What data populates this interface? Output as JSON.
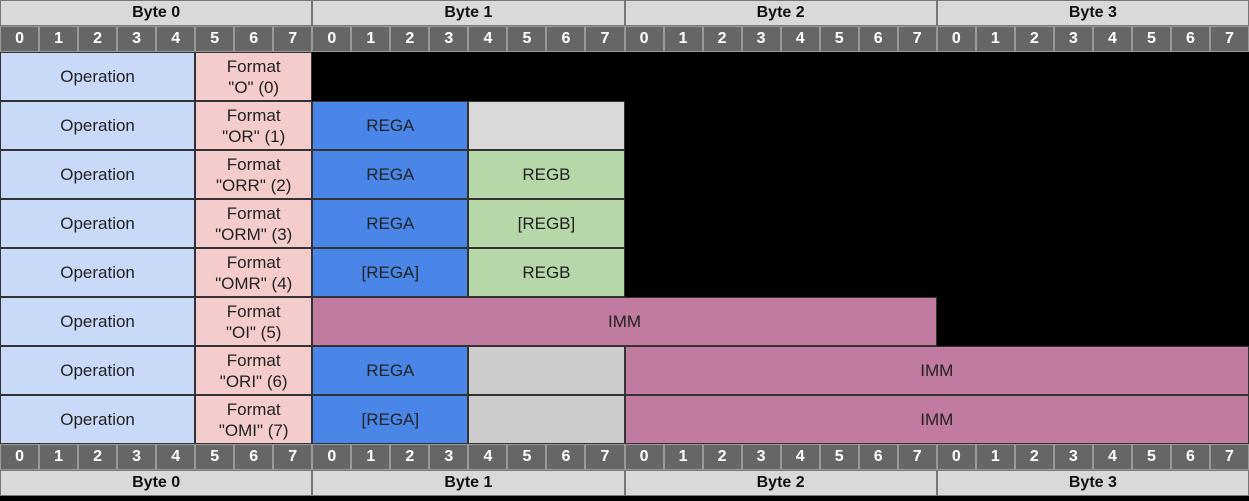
{
  "bytes": [
    "Byte 0",
    "Byte 1",
    "Byte 2",
    "Byte 3"
  ],
  "bits": [
    "0",
    "1",
    "2",
    "3",
    "4",
    "5",
    "6",
    "7"
  ],
  "colors": {
    "operation": "#c9daf8",
    "format": "#f4cccc",
    "rega": "#4a86e8",
    "regb": "#b6d7a8",
    "pad_light": "#d9d9d9",
    "pad_mid": "#cccccc",
    "imm": "#c27ba0",
    "bit_header": "#666666",
    "byte_header": "#d9d9d9"
  },
  "rows": [
    {
      "fields": [
        {
          "type": "operation",
          "label": "Operation",
          "bits": 5
        },
        {
          "type": "format",
          "label": "Format",
          "label2": "\"O\" (0)",
          "bits": 3
        },
        {
          "type": "empty",
          "label": "",
          "bits": 24
        }
      ]
    },
    {
      "fields": [
        {
          "type": "operation",
          "label": "Operation",
          "bits": 5
        },
        {
          "type": "format",
          "label": "Format",
          "label2": "\"OR\" (1)",
          "bits": 3
        },
        {
          "type": "rega",
          "label": "REGA",
          "bits": 4
        },
        {
          "type": "pad-light",
          "label": "",
          "bits": 4
        },
        {
          "type": "empty",
          "label": "",
          "bits": 16
        }
      ]
    },
    {
      "fields": [
        {
          "type": "operation",
          "label": "Operation",
          "bits": 5
        },
        {
          "type": "format",
          "label": "Format",
          "label2": "\"ORR\" (2)",
          "bits": 3
        },
        {
          "type": "rega",
          "label": "REGA",
          "bits": 4
        },
        {
          "type": "regb",
          "label": "REGB",
          "bits": 4
        },
        {
          "type": "empty",
          "label": "",
          "bits": 16
        }
      ]
    },
    {
      "fields": [
        {
          "type": "operation",
          "label": "Operation",
          "bits": 5
        },
        {
          "type": "format",
          "label": "Format",
          "label2": "\"ORM\" (3)",
          "bits": 3
        },
        {
          "type": "rega",
          "label": "REGA",
          "bits": 4
        },
        {
          "type": "regb",
          "label": "[REGB]",
          "bits": 4
        },
        {
          "type": "empty",
          "label": "",
          "bits": 16
        }
      ]
    },
    {
      "fields": [
        {
          "type": "operation",
          "label": "Operation",
          "bits": 5
        },
        {
          "type": "format",
          "label": "Format",
          "label2": "\"OMR\" (4)",
          "bits": 3
        },
        {
          "type": "rega",
          "label": "[REGA]",
          "bits": 4
        },
        {
          "type": "regb",
          "label": "REGB",
          "bits": 4
        },
        {
          "type": "empty",
          "label": "",
          "bits": 16
        }
      ]
    },
    {
      "fields": [
        {
          "type": "operation",
          "label": "Operation",
          "bits": 5
        },
        {
          "type": "format",
          "label": "Format",
          "label2": "\"OI\" (5)",
          "bits": 3
        },
        {
          "type": "imm",
          "label": "IMM",
          "bits": 16
        },
        {
          "type": "empty",
          "label": "",
          "bits": 8
        }
      ]
    },
    {
      "fields": [
        {
          "type": "operation",
          "label": "Operation",
          "bits": 5
        },
        {
          "type": "format",
          "label": "Format",
          "label2": "\"ORI\" (6)",
          "bits": 3
        },
        {
          "type": "rega",
          "label": "REGA",
          "bits": 4
        },
        {
          "type": "pad-mid",
          "label": "",
          "bits": 4
        },
        {
          "type": "imm",
          "label": "IMM",
          "bits": 16
        }
      ]
    },
    {
      "fields": [
        {
          "type": "operation",
          "label": "Operation",
          "bits": 5
        },
        {
          "type": "format",
          "label": "Format",
          "label2": "\"OMI\" (7)",
          "bits": 3
        },
        {
          "type": "rega",
          "label": "[REGA]",
          "bits": 4
        },
        {
          "type": "pad-mid",
          "label": "",
          "bits": 4
        },
        {
          "type": "imm",
          "label": "IMM",
          "bits": 16
        }
      ]
    }
  ]
}
